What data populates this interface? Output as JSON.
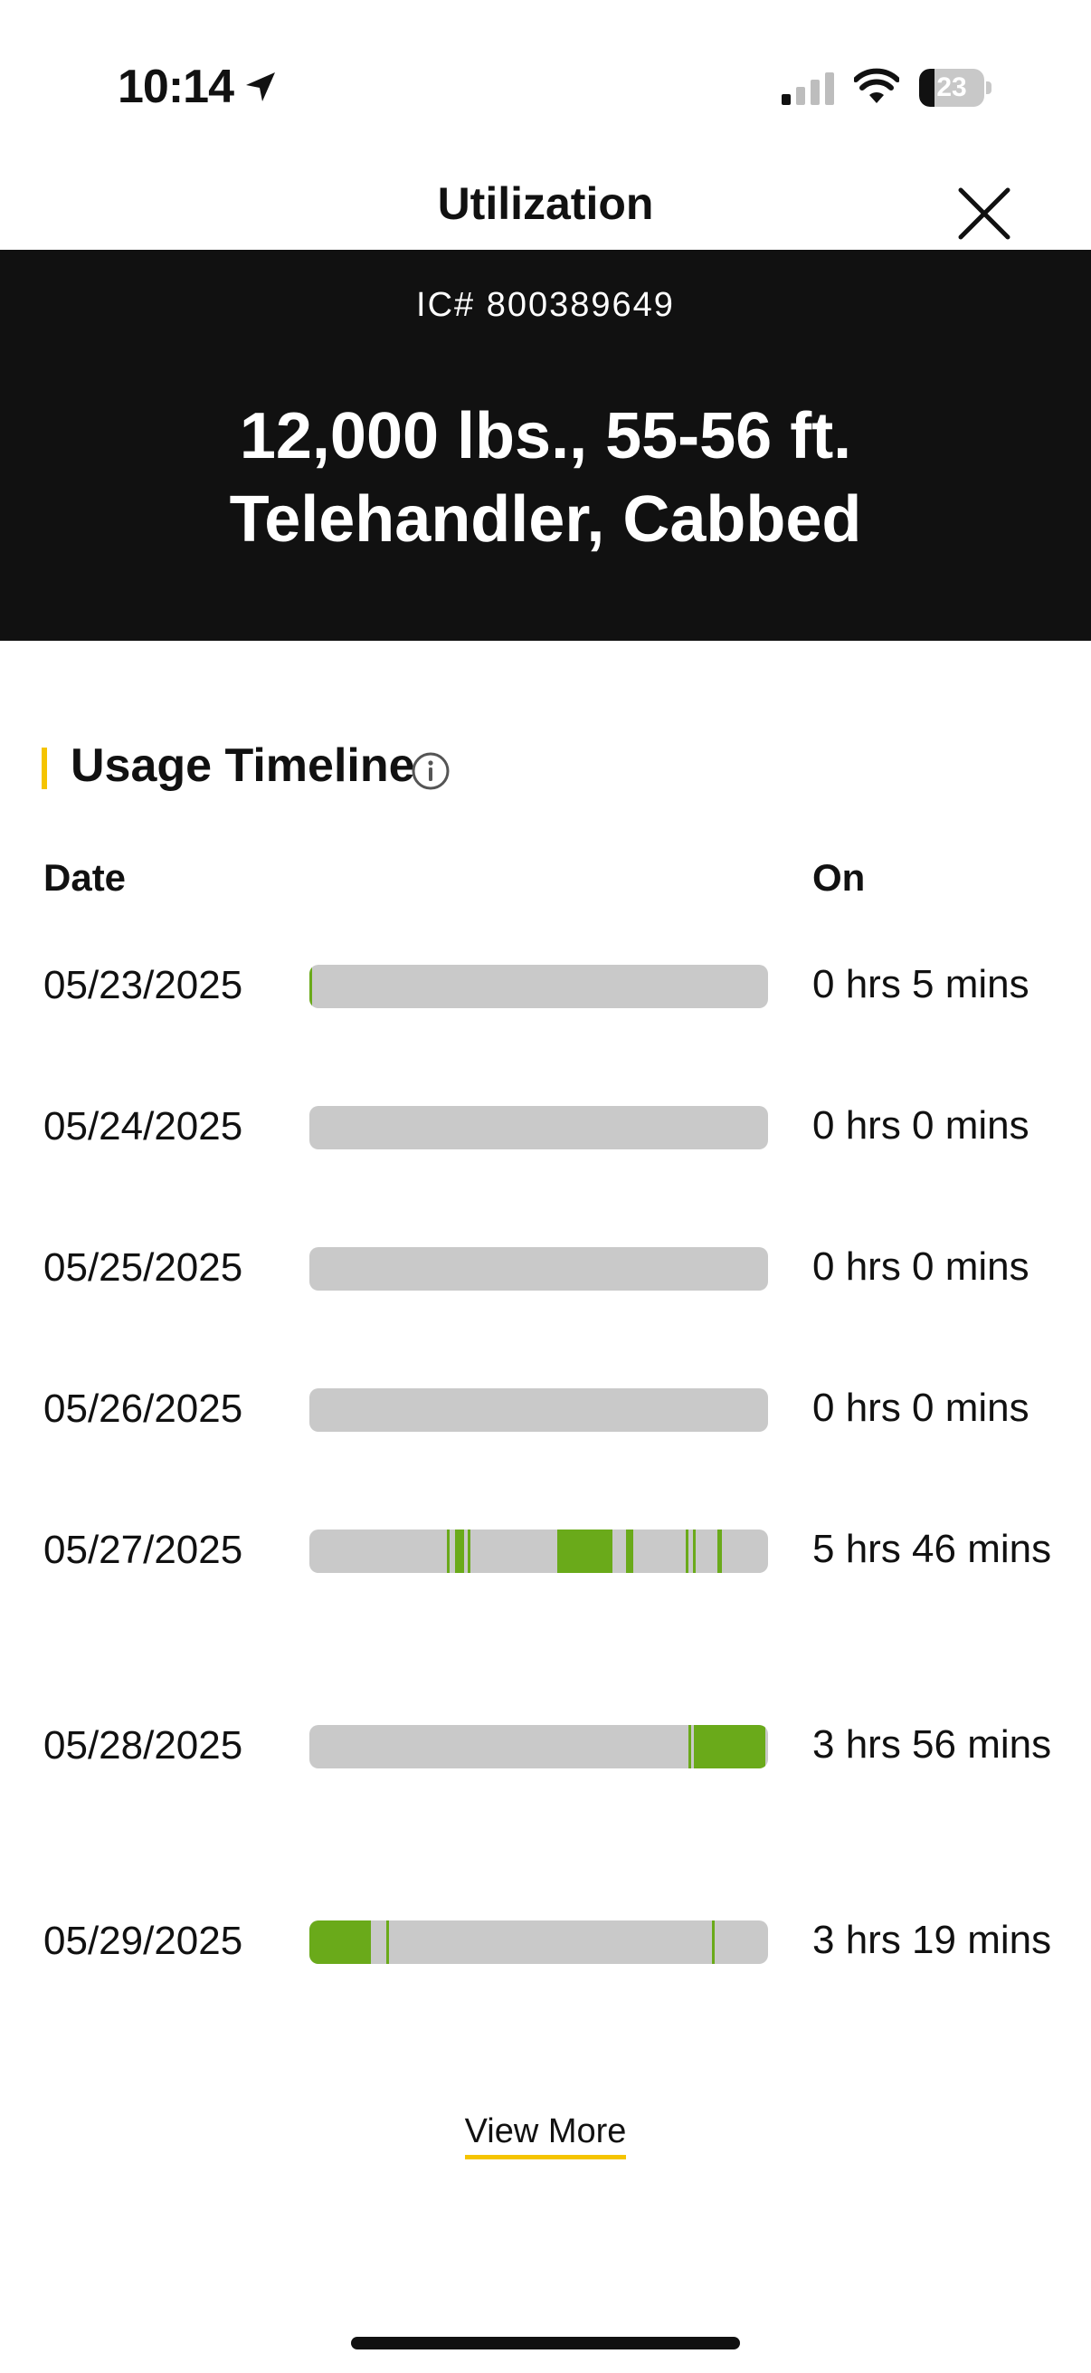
{
  "status": {
    "time": "10:14",
    "battery": "23",
    "battery_level": 0.23,
    "icons": [
      "location-arrow-icon",
      "cellular-signal-icon",
      "wifi-icon",
      "battery-icon"
    ]
  },
  "nav": {
    "title": "Utilization",
    "close_icon": "close-icon"
  },
  "equipment": {
    "ic_number": "IC# 800389649",
    "title": "12,000 lbs., 55-56 ft. Telehandler, Cabbed"
  },
  "usage": {
    "section_title": "Usage Timeline",
    "info_icon": "info-icon",
    "header_date": "Date",
    "header_on": "On",
    "accent_color": "#f5c400",
    "active_color": "#6aaa1a",
    "idle_color": "#c9c9c9",
    "rows": [
      {
        "date": "05/23/2025",
        "on": "0 hrs 5 mins",
        "segments": [
          [
            0.0,
            0.004
          ]
        ]
      },
      {
        "date": "05/24/2025",
        "on": "0 hrs 0 mins",
        "segments": []
      },
      {
        "date": "05/25/2025",
        "on": "0 hrs 0 mins",
        "segments": []
      },
      {
        "date": "05/26/2025",
        "on": "0 hrs 0 mins",
        "segments": []
      },
      {
        "date": "05/27/2025",
        "on": "5 hrs 46 mins",
        "segments": [
          [
            0.3,
            0.006
          ],
          [
            0.318,
            0.02
          ],
          [
            0.346,
            0.005
          ],
          [
            0.54,
            0.12
          ],
          [
            0.69,
            0.016
          ],
          [
            0.82,
            0.006
          ],
          [
            0.836,
            0.006
          ],
          [
            0.89,
            0.01
          ]
        ]
      },
      {
        "date": "05/28/2025",
        "on": "3 hrs 56 mins",
        "segments": [
          [
            0.826,
            0.006
          ],
          [
            0.838,
            0.156
          ]
        ]
      },
      {
        "date": "05/29/2025",
        "on": "3 hrs 19 mins",
        "segments": [
          [
            0.0,
            0.134
          ],
          [
            0.168,
            0.004
          ],
          [
            0.878,
            0.004
          ]
        ]
      }
    ]
  },
  "footer": {
    "view_more": "View More"
  }
}
